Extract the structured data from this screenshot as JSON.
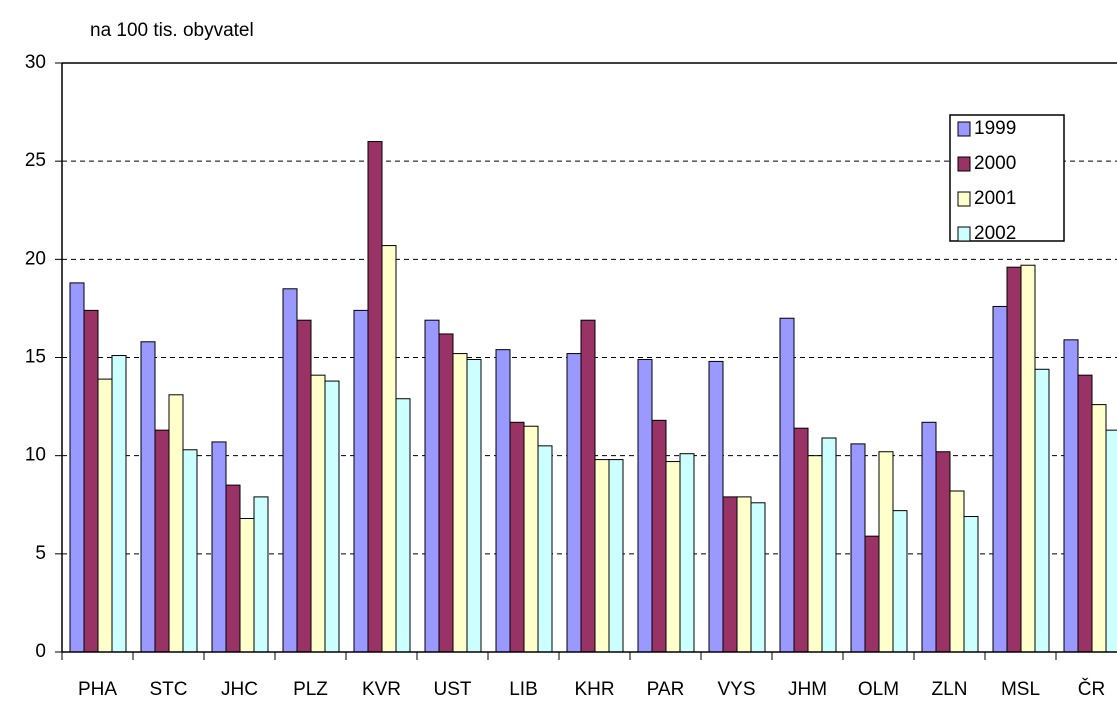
{
  "chart_data": {
    "type": "bar",
    "title": "na 100 tis. obyvatel",
    "categories": [
      "PHA",
      "STC",
      "JHC",
      "PLZ",
      "KVR",
      "UST",
      "LIB",
      "KHR",
      "PAR",
      "VYS",
      "JHM",
      "OLM",
      "ZLN",
      "MSL",
      "ČR"
    ],
    "series": [
      {
        "name": "1999",
        "color": "#9999ff",
        "values": [
          18.8,
          15.8,
          10.7,
          18.5,
          17.4,
          16.9,
          15.4,
          15.2,
          14.9,
          14.8,
          17.0,
          10.6,
          11.7,
          17.6,
          15.9
        ]
      },
      {
        "name": "2000",
        "color": "#993366",
        "values": [
          17.4,
          11.3,
          8.5,
          16.9,
          26.0,
          16.2,
          11.7,
          16.9,
          11.8,
          7.9,
          11.4,
          5.9,
          10.2,
          19.6,
          14.1
        ]
      },
      {
        "name": "2001",
        "color": "#ffffcc",
        "values": [
          13.9,
          13.1,
          6.8,
          14.1,
          20.7,
          15.2,
          11.5,
          9.8,
          9.7,
          7.9,
          10.0,
          10.2,
          8.2,
          19.7,
          12.6
        ]
      },
      {
        "name": "2002",
        "color": "#ccffff",
        "values": [
          15.1,
          10.3,
          7.9,
          13.8,
          12.9,
          14.9,
          10.5,
          9.8,
          10.1,
          7.6,
          10.9,
          7.2,
          6.9,
          14.4,
          11.3
        ]
      }
    ],
    "ylim": [
      0,
      30
    ],
    "yticks": [
      0,
      5,
      10,
      15,
      20,
      25,
      30
    ],
    "grid": true,
    "legend": "upper right"
  }
}
